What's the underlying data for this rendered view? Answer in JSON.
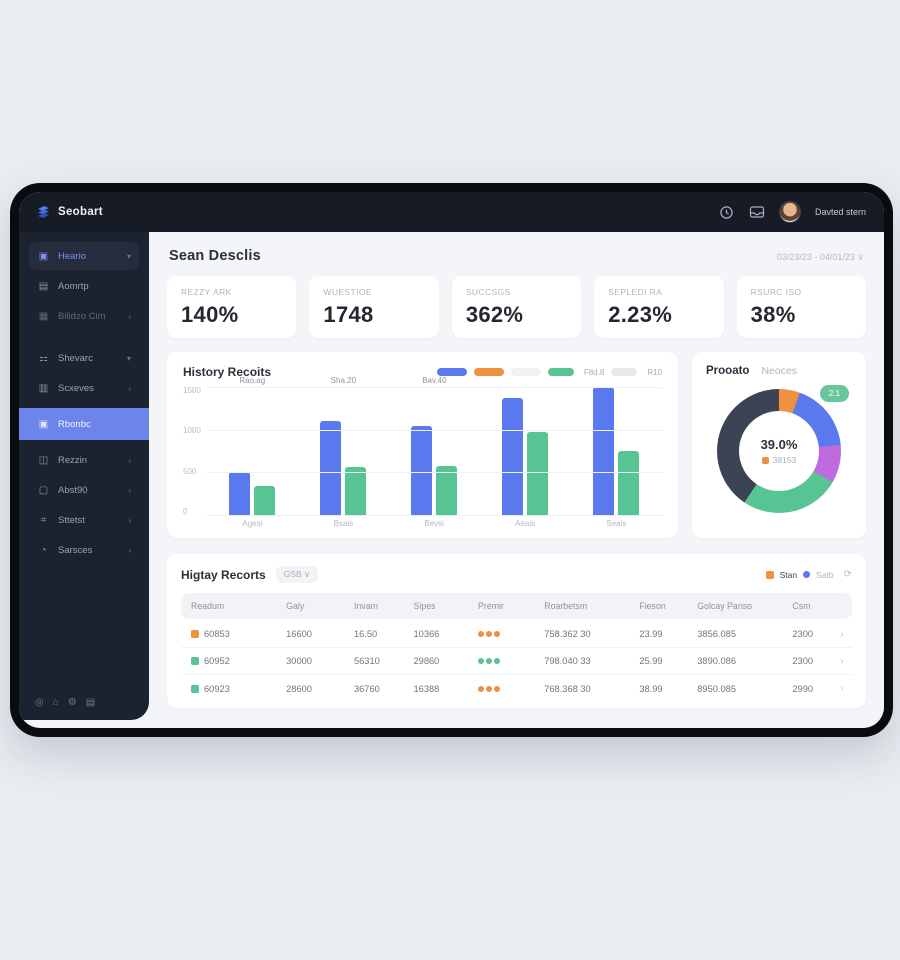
{
  "colors": {
    "blue": "#5b79ee",
    "green": "#56c493",
    "orange": "#ee9140",
    "dark": "#3b4355",
    "purple": "#c06ae0",
    "gray_pill": "#e7e9ee",
    "light_pill": "#f0f1f4"
  },
  "topbar": {
    "logo": "Seobart",
    "user": "Davted stern"
  },
  "sidebar": {
    "items": [
      {
        "label": "Heario",
        "icon": "▣",
        "style": "pill",
        "chevron": "▾",
        "name": "dashboard"
      },
      {
        "label": "Aomrtp",
        "icon": "▤",
        "style": "",
        "chevron": "",
        "name": "reports"
      },
      {
        "label": "Bilidzo Cim",
        "icon": "▦",
        "style": "dim",
        "chevron": "›",
        "name": "billing"
      },
      {
        "label": "",
        "icon": "",
        "style": "gap",
        "chevron": "",
        "name": "gap-1"
      },
      {
        "label": "Shevarc",
        "icon": "⚏",
        "style": "",
        "chevron": "▾",
        "name": "share"
      },
      {
        "label": "Scxeves",
        "icon": "▥",
        "style": "",
        "chevron": "›",
        "name": "sources"
      },
      {
        "label": "Rbonbc",
        "icon": "▣",
        "style": "active",
        "chevron": "",
        "name": "records"
      },
      {
        "label": "Rezzin",
        "icon": "◫",
        "style": "",
        "chevron": "›",
        "name": "files"
      },
      {
        "label": "Abst90",
        "icon": "▢",
        "style": "",
        "chevron": "›",
        "name": "documents"
      },
      {
        "label": "Sttetst",
        "icon": "⌗",
        "style": "",
        "chevron": "›",
        "name": "statistics"
      },
      {
        "label": "Sarsces",
        "icon": "◔",
        "style": "",
        "chevron": "›",
        "name": "services"
      }
    ],
    "footer_icons": [
      {
        "glyph": "◎",
        "name": "search-icon"
      },
      {
        "glyph": "⌂",
        "name": "home-icon"
      },
      {
        "glyph": "⚙",
        "name": "settings-icon"
      },
      {
        "glyph": "▤",
        "name": "menu-icon"
      }
    ]
  },
  "page": {
    "title": "Sean Desclis",
    "date_range": "03/23/23 - 04/01/23  ∨"
  },
  "stats": [
    {
      "label": "REZZY ARK",
      "value": "140%"
    },
    {
      "label": "WUESTIOE",
      "value": "1748"
    },
    {
      "label": "SUCCSGS",
      "value": "362%"
    },
    {
      "label": "SEPLEDI RA",
      "value": "2.23%"
    },
    {
      "label": "RSURC ISO",
      "value": "38%"
    }
  ],
  "bar_section": {
    "title": "History Recoits",
    "legend": [
      {
        "color": "#5b79ee",
        "label": ""
      },
      {
        "color": "#ee9140",
        "label": ""
      },
      {
        "color": "#f0f1f4",
        "label": ""
      },
      {
        "color": "#56c493",
        "label": "F8d.8"
      },
      {
        "color": "#e7e9ee",
        "label": "R10"
      }
    ]
  },
  "donut_section": {
    "tab_active": "Prooato",
    "tab_inactive": "Neoces",
    "center_value": "39.0%",
    "center_sub": "38153",
    "badge": "2.1"
  },
  "table_section": {
    "title": "Higtay Recorts",
    "filter": "GSB  ∨",
    "legend": [
      {
        "color": "#ee9140",
        "shape": "square",
        "label": "Stan",
        "tone": "dark"
      },
      {
        "color": "#5b79ee",
        "shape": "dot",
        "label": "Satb",
        "tone": "gray"
      }
    ],
    "refresh_icon": "⟳",
    "headers": [
      "Readum",
      "Galy",
      "Invam",
      "Sipes",
      "Premir",
      "Roarbetsm",
      "Fieson",
      "Golcay Panso",
      "Csm"
    ],
    "rows": [
      {
        "marker": "#ee9140",
        "id": "60853",
        "cells": [
          "16600",
          "16.50",
          "10366"
        ],
        "dots": "#ee9140",
        "tail": [
          "758.362 30",
          "23.99",
          "3856.085",
          "2300"
        ]
      },
      {
        "marker": "#56c493",
        "id": "60952",
        "cells": [
          "30000",
          "56310",
          "29860"
        ],
        "dots": "#56c493",
        "tail": [
          "798.040 33",
          "25.99",
          "3890.086",
          "2300"
        ]
      },
      {
        "marker": "#56c493",
        "id": "60923",
        "cells": [
          "28600",
          "36760",
          "16388"
        ],
        "dots": "#ee9140",
        "tail": [
          "768.368 30",
          "38.99",
          "8950.085",
          "2990"
        ]
      }
    ]
  },
  "chart_data": [
    {
      "type": "bar",
      "title": "History Recoits",
      "categories": [
        "Agesi",
        "Bsais",
        "Bevsi",
        "Aeais",
        "Seais"
      ],
      "series": [
        {
          "name": "blue-series",
          "color": "#5b79ee",
          "values": [
            500,
            1100,
            1040,
            1370,
            1500
          ]
        },
        {
          "name": "green-series",
          "color": "#56c493",
          "values": [
            340,
            565,
            580,
            970,
            745
          ]
        }
      ],
      "bar_labels": [
        "Rao.ag",
        "Sha.20",
        "Bav.40",
        "",
        ""
      ],
      "xlabel": "",
      "ylabel": "",
      "ylim": [
        0,
        1500
      ],
      "yticks": [
        1500,
        1000,
        500,
        0
      ],
      "grid": true,
      "legend_position": "top-right"
    },
    {
      "type": "pie",
      "title": "Prooato",
      "labels": [
        "orange",
        "blue",
        "purple",
        "green",
        "dark"
      ],
      "values": [
        11,
        18,
        10,
        26,
        35
      ],
      "colors": [
        "#ee9140",
        "#5b79ee",
        "#c06ae0",
        "#56c493",
        "#3b4355"
      ],
      "center_label": "39.0%",
      "center_sub": "38153",
      "badge": "2.1"
    }
  ]
}
